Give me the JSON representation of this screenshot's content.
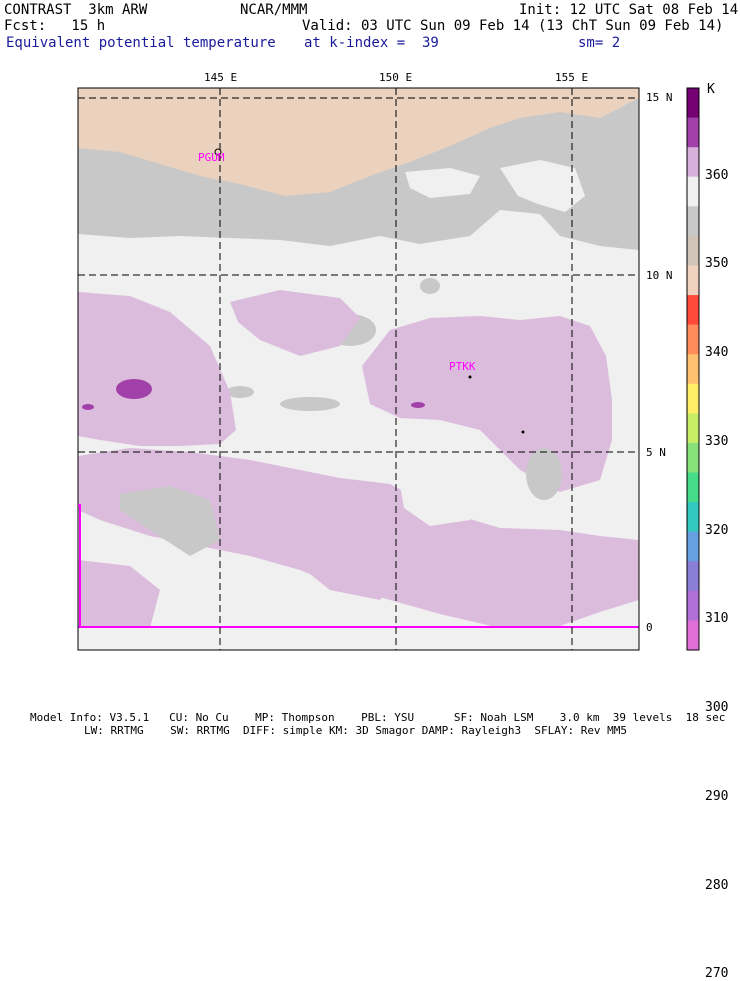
{
  "header": {
    "model_label": "CONTRAST  3km ARW",
    "org": "NCAR/MMM",
    "init": "Init: 12 UTC Sat 08 Feb 14",
    "fcst": "Fcst:   15 h",
    "valid": "Valid: 03 UTC Sun 09 Feb 14 (13 ChT Sun 09 Feb 14)",
    "field": "Equivalent potential temperature",
    "level": "at k-index =  39",
    "smooth": "sm= 2"
  },
  "axes": {
    "lon_labels": [
      "145 E",
      "150 E",
      "155 E"
    ],
    "lat_labels": [
      "15 N",
      "10 N",
      "5 N",
      "0"
    ]
  },
  "stations": [
    "PGUM",
    "PTKK"
  ],
  "legend": {
    "unit": "K",
    "tick_labels": [
      "360",
      "350",
      "340",
      "330",
      "320",
      "310",
      "300",
      "290",
      "280",
      "270"
    ],
    "colors": [
      "#740074",
      "#a040a8",
      "#d8b0dc",
      "#f0f0f0",
      "#c8c8c8",
      "#d0c4b8",
      "#f0d2be",
      "#ff4a3a",
      "#ff8c5a",
      "#ffc070",
      "#ffee66",
      "#c8ee66",
      "#88e27a",
      "#44dc88",
      "#33c8c0",
      "#66a0e0",
      "#8a7ed8",
      "#b070d8",
      "#e070d8"
    ]
  },
  "footer": {
    "line1": "Model Info: V3.5.1   CU: No Cu    MP: Thompson    PBL: YSU      SF: Noah LSM    3.0 km  39 levels  18 sec",
    "line2": "LW: RRTMG    SW: RRTMG  DIFF: simple KM: 3D Smagor DAMP: Rayleigh3  SFLAY: Rev MM5"
  }
}
